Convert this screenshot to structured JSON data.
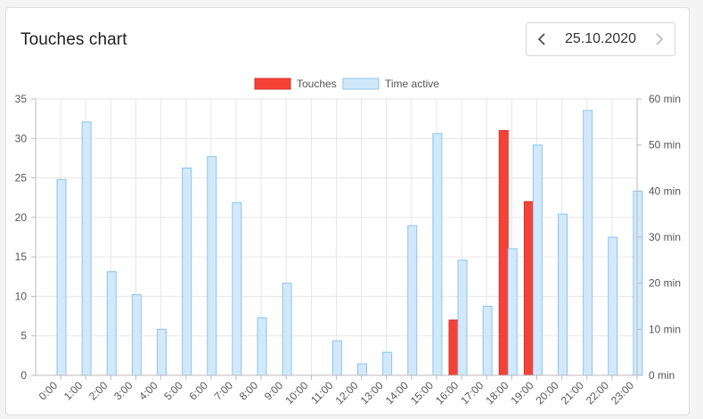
{
  "header": {
    "title": "Touches chart",
    "date": "25.10.2020",
    "prev_icon": "chevron-left-icon",
    "next_icon": "chevron-right-icon"
  },
  "colors": {
    "touches_fill": "#f44336",
    "touches_stroke": "#d32f2f",
    "active_fill": "#d2e9fb",
    "active_stroke": "#8cc4ef",
    "grid": "#e6e6e6",
    "axis": "#bbbbbb"
  },
  "chart_data": {
    "type": "bar",
    "legend_position": "top-center",
    "grid": true,
    "categories": [
      "0:00",
      "1:00",
      "2:00",
      "3:00",
      "4:00",
      "5:00",
      "6:00",
      "7:00",
      "8:00",
      "9:00",
      "10:00",
      "11:00",
      "12:00",
      "13:00",
      "14:00",
      "15:00",
      "16:00",
      "17:00",
      "18:00",
      "19:00",
      "20:00",
      "21:00",
      "22:00",
      "23:00"
    ],
    "series": [
      {
        "name": "Touches",
        "axis": "left",
        "values": [
          0,
          0,
          0,
          0,
          0,
          0,
          0,
          0,
          0,
          0,
          0,
          0,
          0,
          0,
          0,
          0,
          7,
          0,
          31,
          22,
          0,
          0,
          0,
          0
        ]
      },
      {
        "name": "Time active",
        "axis": "right",
        "values": [
          42.5,
          55,
          22.5,
          17.5,
          10,
          45,
          47.5,
          37.5,
          12.5,
          20,
          0,
          7.5,
          2.5,
          5,
          32.5,
          52.5,
          25,
          15,
          27.5,
          50,
          35,
          57.5,
          30,
          40
        ]
      }
    ],
    "y_left": {
      "ylim": [
        0,
        35
      ],
      "ticks": [
        "0",
        "5",
        "10",
        "15",
        "20",
        "25",
        "30",
        "35"
      ]
    },
    "y_right": {
      "ylim": [
        0,
        60
      ],
      "ticks": [
        "0 min",
        "10 min",
        "20 min",
        "30 min",
        "40 min",
        "50 min",
        "60 min"
      ]
    }
  }
}
